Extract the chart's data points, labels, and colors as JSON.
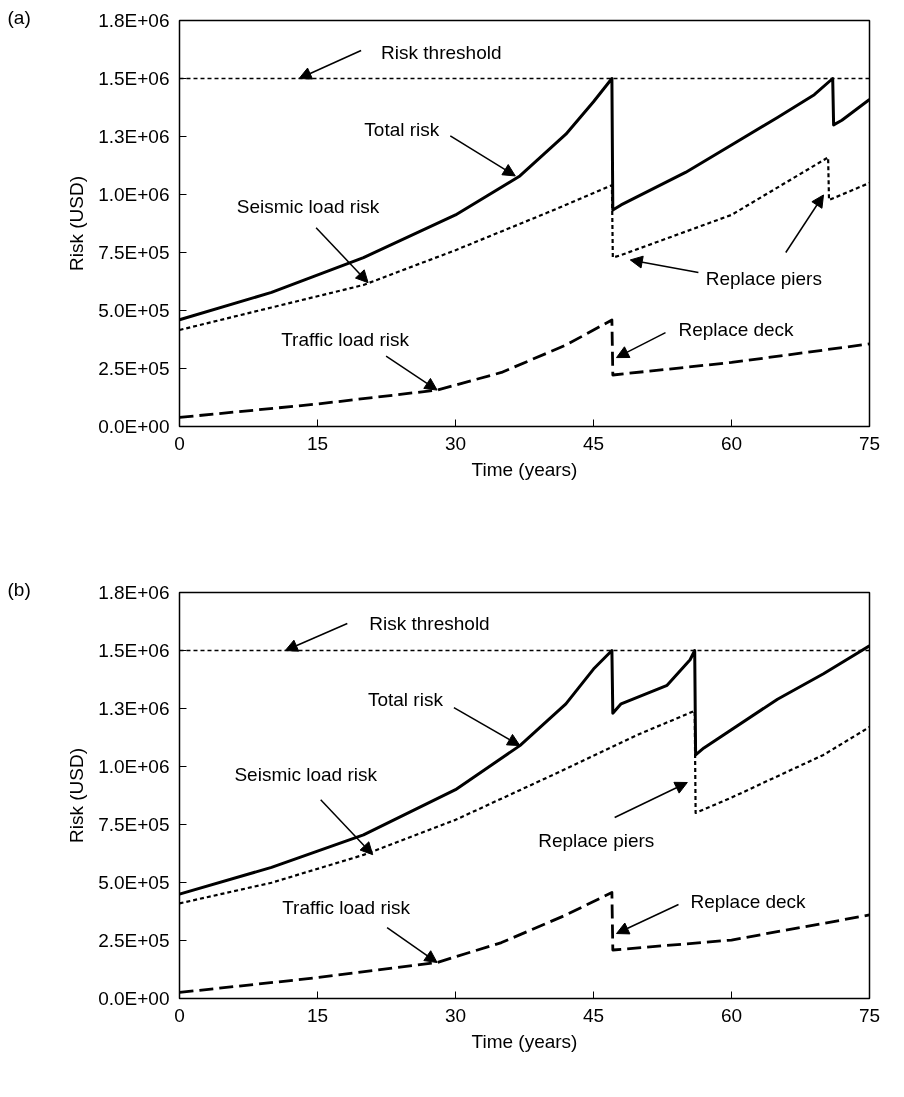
{
  "chart_data": [
    {
      "type": "line",
      "title": "(a)",
      "xlabel": "Time (years)",
      "ylabel": "Risk (USD)",
      "xlim": [
        0,
        75
      ],
      "ylim": [
        0,
        1750000
      ],
      "xticks": [
        0,
        15,
        30,
        45,
        60,
        75
      ],
      "yticks": [
        {
          "value": 0,
          "label": "0.0E+00"
        },
        {
          "value": 250000,
          "label": "2.5E+05"
        },
        {
          "value": 500000,
          "label": "5.0E+05"
        },
        {
          "value": 750000,
          "label": "7.5E+05"
        },
        {
          "value": 1000000,
          "label": "1.0E+06"
        },
        {
          "value": 1250000,
          "label": "1.3E+06"
        },
        {
          "value": 1500000,
          "label": "1.5E+06"
        },
        {
          "value": 1750000,
          "label": "1.8E+06"
        }
      ],
      "series": [
        {
          "color": "#000000",
          "line_style": "solid",
          "x": [
            0,
            10,
            20,
            30,
            37,
            42,
            45,
            47,
            47.1,
            48,
            55,
            60,
            65,
            69,
            71,
            71.1,
            72,
            75
          ],
          "values": [
            460000,
            578000,
            728000,
            912000,
            1080000,
            1260000,
            1400000,
            1500000,
            933000,
            955000,
            1095000,
            1213000,
            1332000,
            1430000,
            1500000,
            1300000,
            1320000,
            1410000
          ]
        },
        {
          "color": "#000000",
          "line_style": "dotted",
          "x": [
            0,
            10,
            20,
            30,
            40,
            47,
            47.1,
            48,
            60,
            70.5,
            70.6,
            75
          ],
          "values": [
            416000,
            513000,
            610000,
            760000,
            922000,
            1040000,
            728000,
            739000,
            912000,
            1160000,
            976000,
            1050000
          ]
        },
        {
          "color": "#000000",
          "line_style": "dashed",
          "x": [
            0,
            15,
            28,
            35,
            42,
            47,
            47.1,
            60,
            75
          ],
          "values": [
            39000,
            97000,
            157000,
            233000,
            351000,
            459000,
            222000,
            276000,
            356000
          ]
        }
      ],
      "ref_lines": [
        {
          "axis": "y",
          "value": 1500000,
          "color": "#000000",
          "line_style": "dotted"
        }
      ],
      "annotations": [
        {
          "text": "Risk threshold",
          "x": 13,
          "y": 1500000
        },
        {
          "text": "Total risk",
          "x": 36.5,
          "y": 1080000
        },
        {
          "text": "Seismic load risk",
          "x": 20.5,
          "y": 620000
        },
        {
          "text": "Traffic load risk",
          "x": 28,
          "y": 157000
        },
        {
          "text": "Replace deck",
          "x": 47.5,
          "y": 297000
        },
        "Replace piers"
      ]
    },
    {
      "type": "line",
      "title": "(b)",
      "xlabel": "Time (years)",
      "ylabel": "Risk (USD)",
      "xlim": [
        0,
        75
      ],
      "ylim": [
        0,
        1750000
      ],
      "xticks": [
        0,
        15,
        30,
        45,
        60,
        75
      ],
      "yticks": [
        {
          "value": 0,
          "label": "0.0E+00"
        },
        {
          "value": 250000,
          "label": "2.5E+05"
        },
        {
          "value": 500000,
          "label": "5.0E+05"
        },
        {
          "value": 750000,
          "label": "7.5E+05"
        },
        {
          "value": 1000000,
          "label": "1.0E+06"
        },
        {
          "value": 1250000,
          "label": "1.3E+06"
        },
        {
          "value": 1500000,
          "label": "1.5E+06"
        },
        {
          "value": 1750000,
          "label": "1.8E+06"
        }
      ],
      "series": [
        {
          "color": "#000000",
          "line_style": "solid",
          "x": [
            0,
            10,
            20,
            30,
            37,
            42,
            45,
            47,
            47.1,
            48,
            53,
            55.5,
            56,
            56.1,
            57,
            65,
            70,
            75
          ],
          "values": [
            450000,
            565000,
            705000,
            900000,
            1090000,
            1270000,
            1420000,
            1500000,
            1230000,
            1270000,
            1350000,
            1460000,
            1500000,
            1050000,
            1080000,
            1290000,
            1400000,
            1520000
          ]
        },
        {
          "color": "#000000",
          "line_style": "dotted",
          "x": [
            0,
            10,
            20,
            30,
            40,
            50,
            56,
            56.1,
            60,
            70,
            75
          ],
          "values": [
            410000,
            499000,
            619000,
            770000,
            953000,
            1140000,
            1240000,
            800000,
            866000,
            1050000,
            1170000
          ]
        },
        {
          "color": "#000000",
          "line_style": "dashed",
          "x": [
            0,
            15,
            28,
            35,
            42,
            47,
            47.1,
            60,
            75
          ],
          "values": [
            26000,
            90000,
            155000,
            241000,
            360000,
            457000,
            209000,
            252000,
            360000
          ]
        }
      ],
      "ref_lines": [
        {
          "axis": "y",
          "value": 1500000,
          "color": "#000000",
          "line_style": "dotted"
        }
      ],
      "annotations": [
        {
          "text": "Risk threshold",
          "x": 11.5,
          "y": 1500000
        },
        {
          "text": "Total risk",
          "x": 37,
          "y": 1090000
        },
        {
          "text": "Seismic load risk",
          "x": 21,
          "y": 620000
        },
        {
          "text": "Traffic load risk",
          "x": 28,
          "y": 155000
        },
        {
          "text": "Replace deck",
          "x": 47.5,
          "y": 280000
        },
        "Replace piers"
      ]
    }
  ]
}
